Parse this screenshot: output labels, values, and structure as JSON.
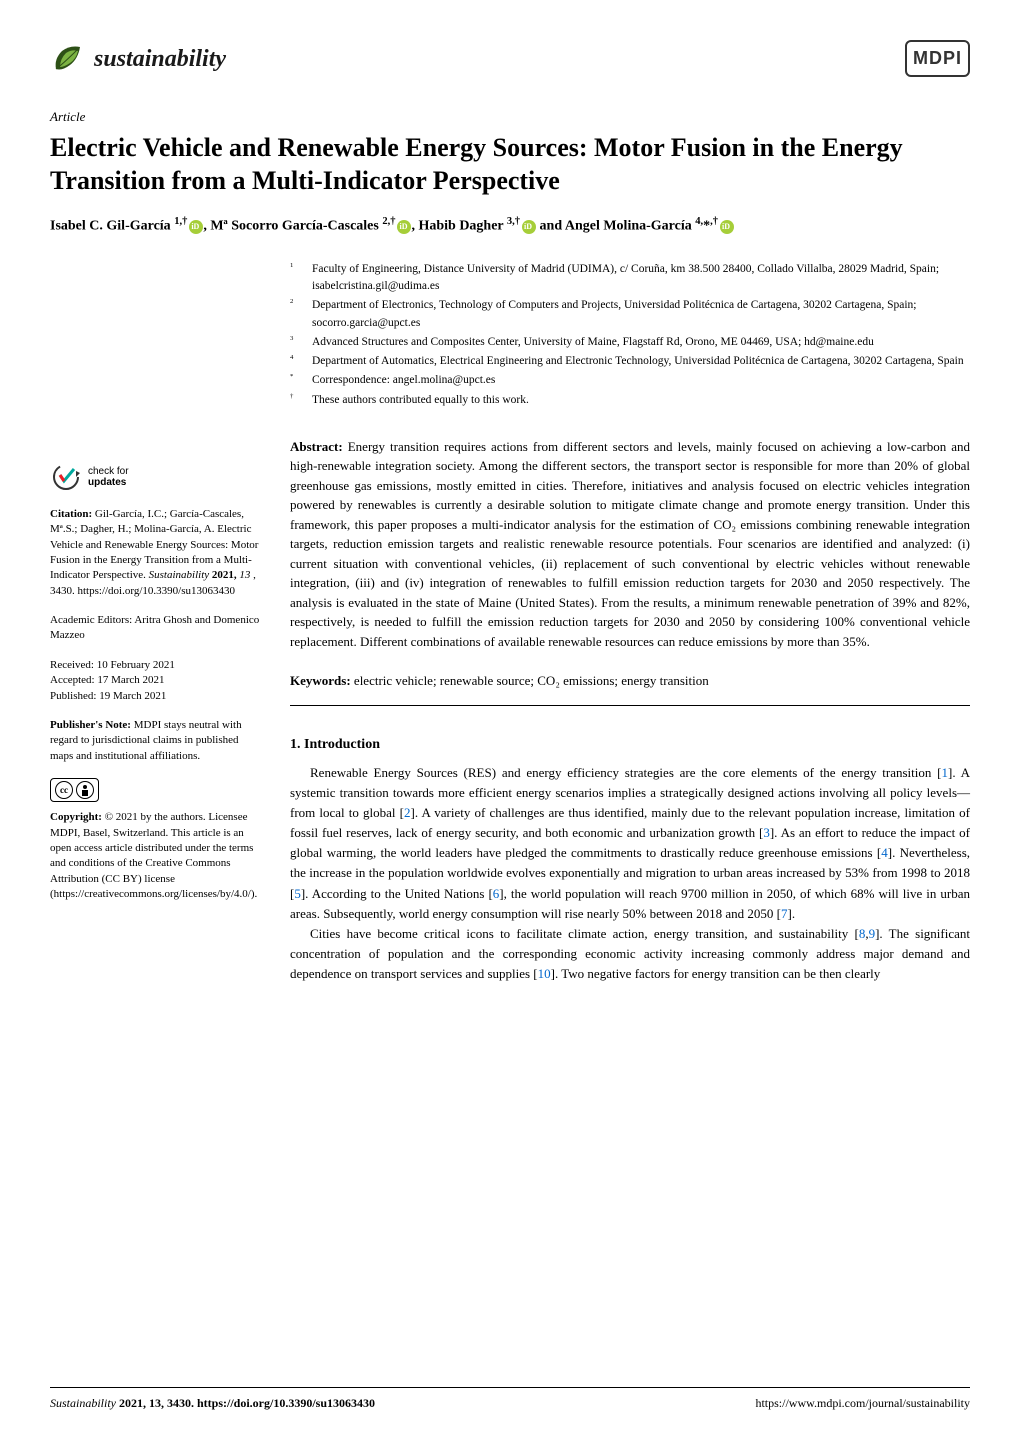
{
  "journal": {
    "name": "sustainability",
    "publisher_logo": "MDPI"
  },
  "article": {
    "type": "Article",
    "title": "Electric Vehicle and Renewable Energy Sources: Motor Fusion in the Energy Transition from a Multi-Indicator Perspective",
    "authors_html": "Isabel C. Gil-García <sup>1,†</sup>, Mª Socorro García-Cascales <sup>2,†</sup>, Habib Dagher <sup>3,†</sup> and Angel Molina-García <sup>4,*,†</sup>"
  },
  "affiliations": [
    {
      "num": "1",
      "text": "Faculty of Engineering, Distance University of Madrid (UDIMA), c/ Coruña, km 38.500 28400, Collado Villalba, 28029 Madrid, Spain; isabelcristina.gil@udima.es"
    },
    {
      "num": "2",
      "text": "Department of Electronics, Technology of Computers and Projects, Universidad Politécnica de Cartagena, 30202 Cartagena, Spain; socorro.garcia@upct.es"
    },
    {
      "num": "3",
      "text": "Advanced Structures and Composites Center, University of Maine, Flagstaff Rd, Orono, ME 04469, USA; hd@maine.edu"
    },
    {
      "num": "4",
      "text": "Department of Automatics, Electrical Engineering and Electronic Technology, Universidad Politécnica de Cartagena, 30202 Cartagena, Spain"
    },
    {
      "num": "*",
      "text": "Correspondence: angel.molina@upct.es"
    },
    {
      "num": "†",
      "text": "These authors contributed equally to this work."
    }
  ],
  "abstract": {
    "label": "Abstract:",
    "text": "Energy transition requires actions from different sectors and levels, mainly focused on achieving a low-carbon and high-renewable integration society. Among the different sectors, the transport sector is responsible for more than 20% of global greenhouse gas emissions, mostly emitted in cities. Therefore, initiatives and analysis focused on electric vehicles integration powered by renewables is currently a desirable solution to mitigate climate change and promote energy transition. Under this framework, this paper proposes a multi-indicator analysis for the estimation of CO₂ emissions combining renewable integration targets, reduction emission targets and realistic renewable resource potentials. Four scenarios are identified and analyzed: (i) current situation with conventional vehicles, (ii) replacement of such conventional by electric vehicles without renewable integration, (iii) and (iv) integration of renewables to fulfill emission reduction targets for 2030 and 2050 respectively. The analysis is evaluated in the state of Maine (United States). From the results, a minimum renewable penetration of 39% and 82%, respectively, is needed to fulfill the emission reduction targets for 2030 and 2050 by considering 100% conventional vehicle replacement. Different combinations of available renewable resources can reduce emissions by more than 35%."
  },
  "keywords": {
    "label": "Keywords:",
    "text": "electric vehicle; renewable source; CO₂ emissions; energy transition"
  },
  "section1": {
    "heading": "1. Introduction",
    "p1_pre": "Renewable Energy Sources (RES) and energy efficiency strategies are the core elements of the energy transition [",
    "r1": "1",
    "p1_a": "]. A systemic transition towards more efficient energy scenarios implies a strategically designed actions involving all policy levels—from local to global [",
    "r2": "2",
    "p1_b": "]. A variety of challenges are thus identified, mainly due to the relevant population increase, limitation of fossil fuel reserves, lack of energy security, and both economic and urbanization growth [",
    "r3": "3",
    "p1_c": "]. As an effort to reduce the impact of global warming, the world leaders have pledged the commitments to drastically reduce greenhouse emissions [",
    "r4": "4",
    "p1_d": "]. Nevertheless, the increase in the population worldwide evolves exponentially and migration to urban areas increased by 53% from 1998 to 2018 [",
    "r5": "5",
    "p1_e": "]. According to the United Nations [",
    "r6": "6",
    "p1_f": "], the world population will reach 9700 million in 2050, of which 68% will live in urban areas. Subsequently, world energy consumption will rise nearly 50% between 2018 and 2050 [",
    "r7": "7",
    "p1_g": "].",
    "p2_pre": "Cities have become critical icons to facilitate climate action, energy transition, and sustainability [",
    "r8": "8",
    "p2_comma": ",",
    "r9": "9",
    "p2_a": "]. The significant concentration of population and the corresponding economic activity increasing commonly address major demand and dependence on transport services and supplies [",
    "r10": "10",
    "p2_b": "]. Two negative factors for energy transition can be then clearly"
  },
  "sidebar": {
    "check_updates_line1": "check for",
    "check_updates_line2": "updates",
    "citation_label": "Citation:",
    "citation_text": "Gil-García, I.C.; García-Cascales, Mª.S.; Dagher, H.; Molina-García, A. Electric Vehicle and Renewable Energy Sources: Motor Fusion in the Energy Transition from a Multi-Indicator Perspective. ",
    "citation_journal": "Sustainability",
    "citation_year_vol": " 2021, ",
    "citation_vol": "13",
    "citation_page": ", 3430. https://doi.org/10.3390/su13063430",
    "editors_label": "Academic Editors: ",
    "editors_text": "Aritra Ghosh and Domenico Mazzeo",
    "received": "Received: 10 February 2021",
    "accepted": "Accepted: 17 March 2021",
    "published": "Published: 19 March 2021",
    "note_label": "Publisher's Note:",
    "note_text": " MDPI stays neutral with regard to jurisdictional claims in published maps and institutional affiliations.",
    "copyright_label": "Copyright:",
    "copyright_text": " © 2021 by the authors. Licensee MDPI, Basel, Switzerland. This article is an open access article distributed under the terms and conditions of the Creative Commons Attribution (CC BY) license (https://creativecommons.org/licenses/by/4.0/)."
  },
  "footer": {
    "left_journal": "Sustainability",
    "left_rest": " 2021, 13, 3430. https://doi.org/10.3390/su13063430",
    "right": "https://www.mdpi.com/journal/sustainability"
  },
  "colors": {
    "orcid_green": "#a6ce39",
    "link_blue": "#0066cc",
    "leaf_dark": "#2d5016",
    "leaf_light": "#7cb342",
    "check_teal": "#00a99d",
    "check_red": "#ed1c24"
  }
}
